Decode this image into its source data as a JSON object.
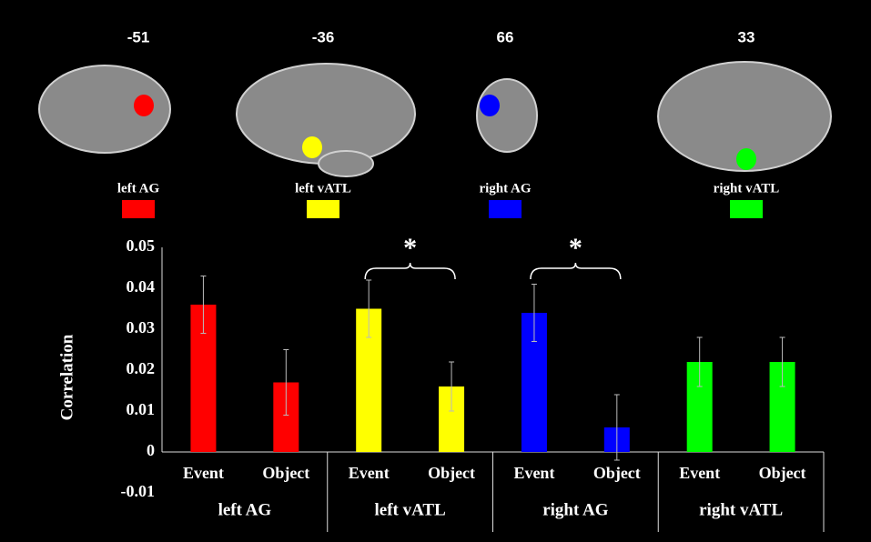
{
  "brain_panels": [
    {
      "coordinate": -51,
      "label": "left AG",
      "color": "#ff0000"
    },
    {
      "coordinate": -36,
      "label": "left vATL",
      "color": "#ffff00"
    },
    {
      "coordinate": 66,
      "label": "right AG",
      "color": "#0000ff"
    },
    {
      "coordinate": 33,
      "label": "right vATL",
      "color": "#00ff00"
    }
  ],
  "chart_data": {
    "type": "bar",
    "y_label": "Correlation",
    "ylim": [
      -0.01,
      0.05
    ],
    "yticks": [
      -0.01,
      0,
      0.01,
      0.02,
      0.03,
      0.04,
      0.05
    ],
    "grid": false,
    "groups": [
      {
        "name": "left AG",
        "color": "#ff0000",
        "categories": [
          "Event",
          "Object"
        ],
        "values": [
          0.036,
          0.017
        ],
        "errors": [
          0.007,
          0.008
        ]
      },
      {
        "name": "left vATL",
        "color": "#ffff00",
        "categories": [
          "Event",
          "Object"
        ],
        "values": [
          0.035,
          0.016
        ],
        "errors": [
          0.007,
          0.006
        ],
        "annotation": "*"
      },
      {
        "name": "right AG",
        "color": "#0000ff",
        "categories": [
          "Event",
          "Object"
        ],
        "values": [
          0.034,
          0.006
        ],
        "errors": [
          0.007,
          0.008
        ],
        "annotation": "*"
      },
      {
        "name": "right vATL",
        "color": "#00ff00",
        "categories": [
          "Event",
          "Object"
        ],
        "values": [
          0.022,
          0.022
        ],
        "errors": [
          0.006,
          0.006
        ]
      }
    ]
  }
}
